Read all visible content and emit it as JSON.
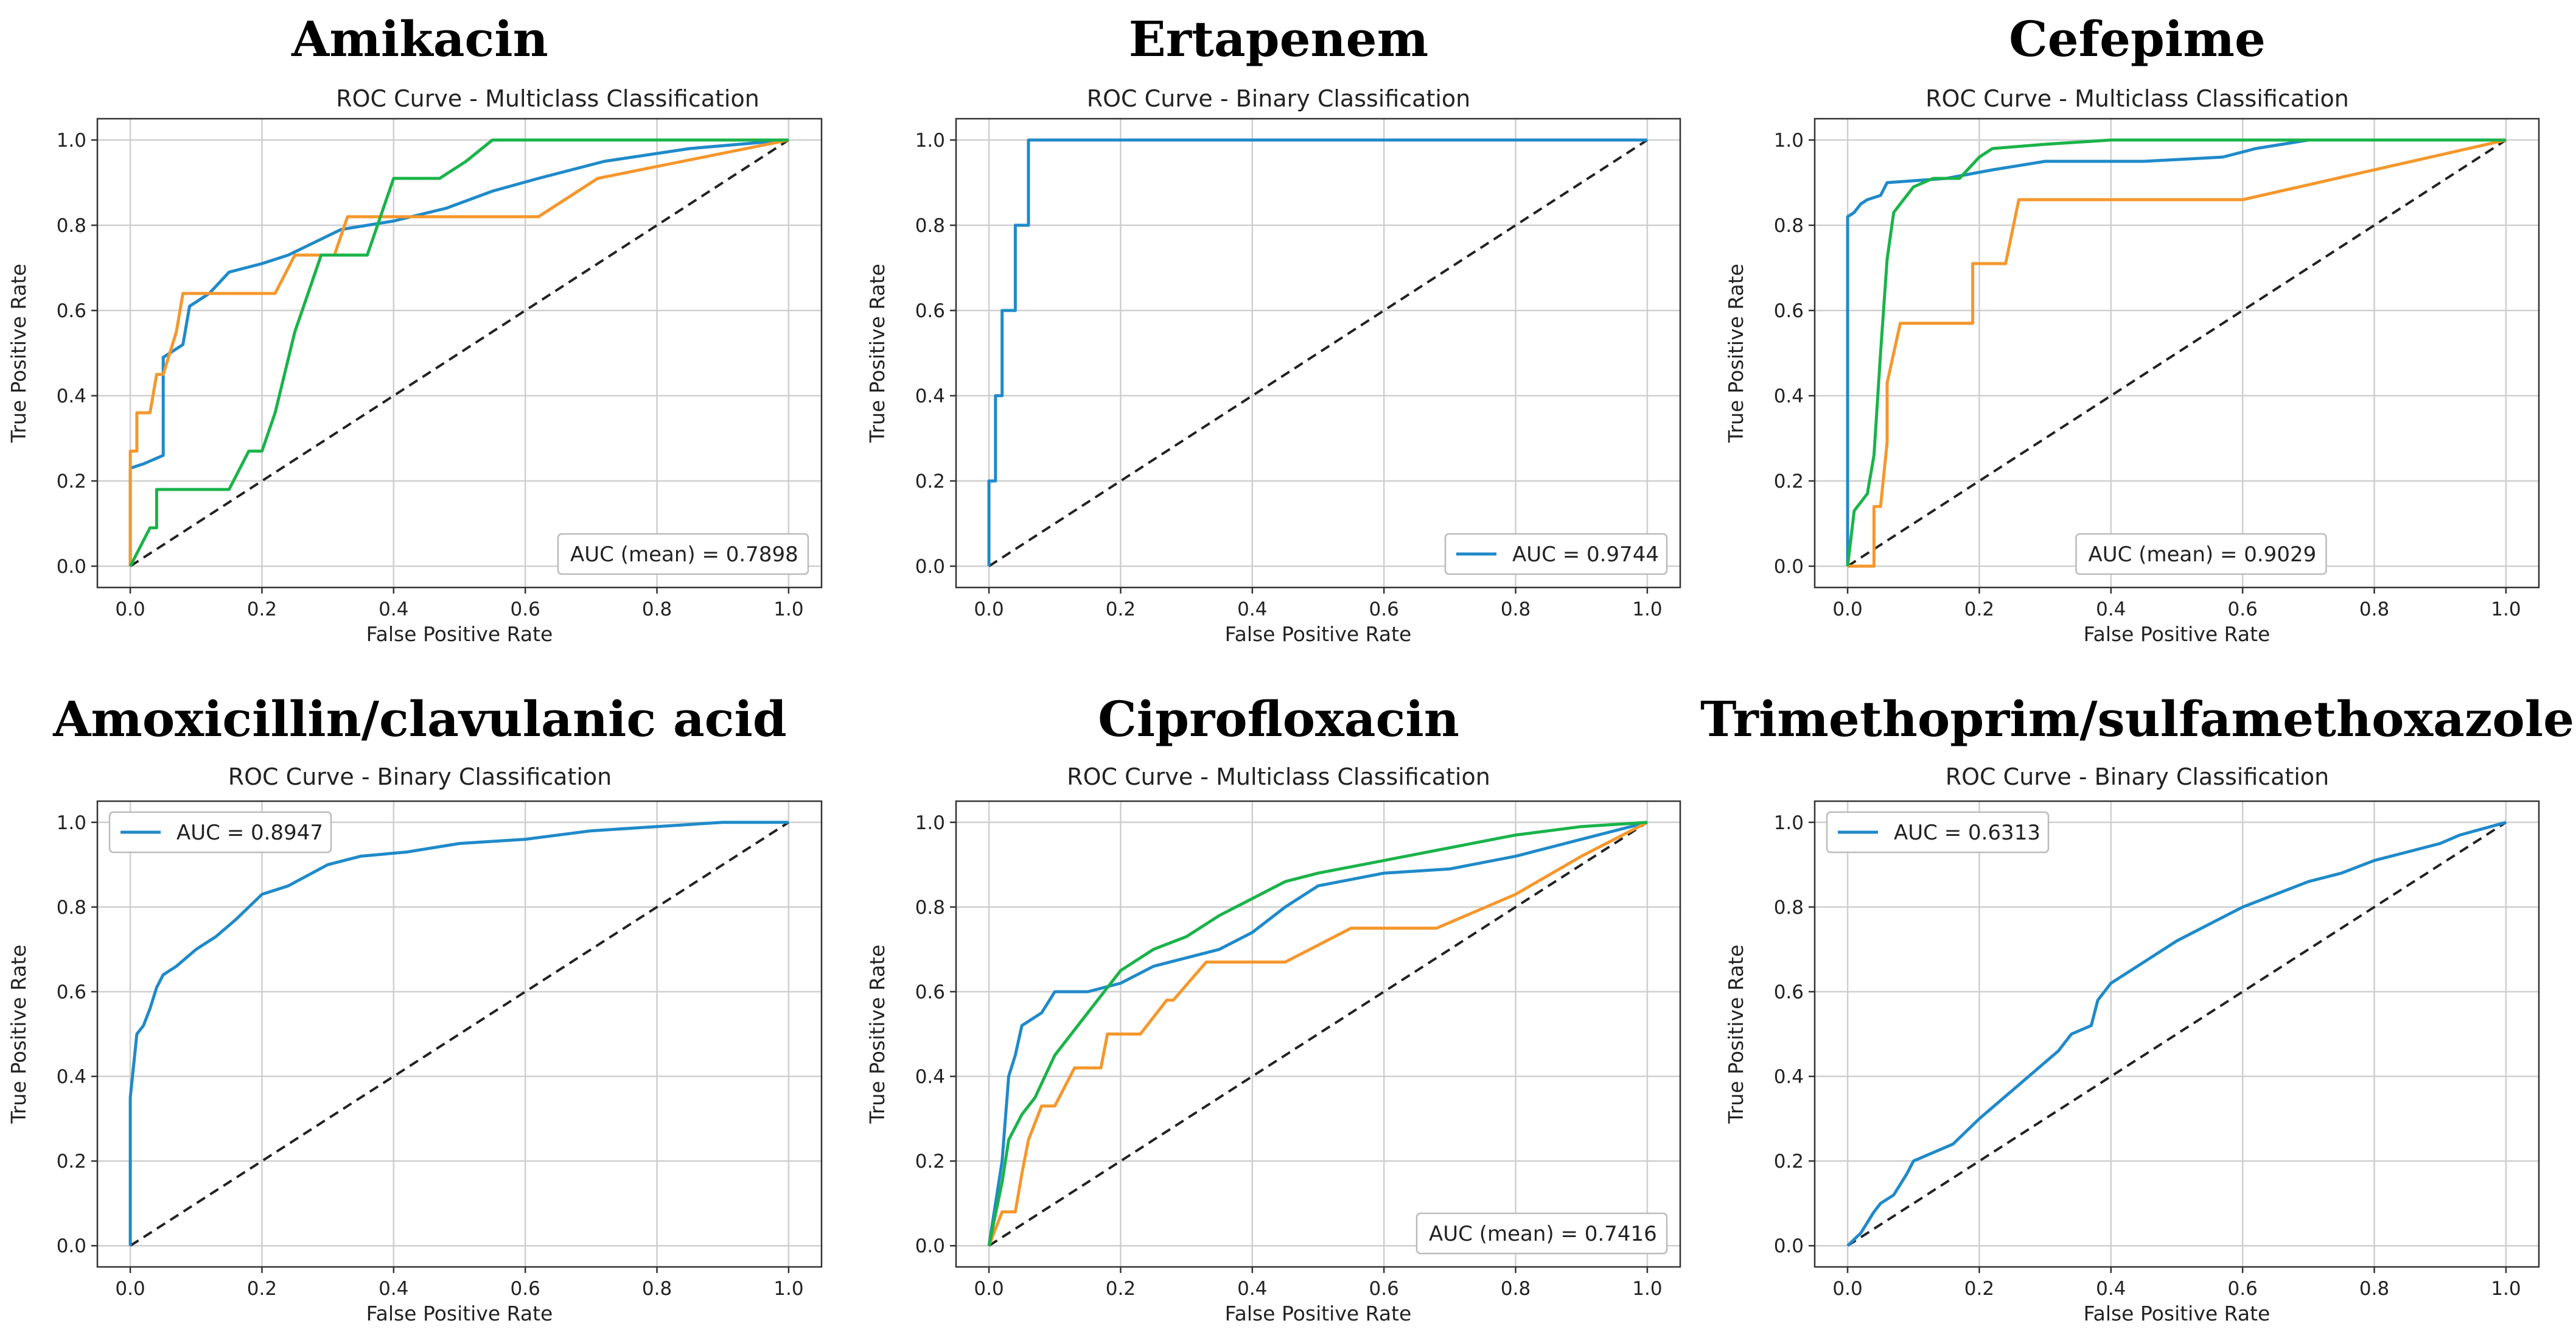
{
  "chart_data": [
    {
      "type": "line",
      "heading": "Amikacin",
      "title": "ROC Curve -  Multiclass Classification",
      "xlabel": "False Positive Rate",
      "ylabel": "True Positive Rate",
      "xlim": [
        0,
        1
      ],
      "ylim": [
        0,
        1
      ],
      "ticks": [
        "0.0",
        "0.2",
        "0.4",
        "0.6",
        "0.8",
        "1.0"
      ],
      "grid": true,
      "legend": {
        "text": "AUC (mean) = 0.7898",
        "placement": "lower-right",
        "has_swatch": false
      },
      "colors": {
        "blue": "#1f8ac9",
        "orange": "#f5972c",
        "green": "#1ab34a",
        "diagonal": "#222222"
      },
      "series": [
        {
          "color": "blue",
          "x": [
            0,
            0,
            0.02,
            0.05,
            0.05,
            0.08,
            0.09,
            0.12,
            0.15,
            0.2,
            0.24,
            0.32,
            0.4,
            0.48,
            0.55,
            0.62,
            0.72,
            0.85,
            1.0
          ],
          "y": [
            0,
            0.23,
            0.24,
            0.26,
            0.49,
            0.52,
            0.61,
            0.64,
            0.69,
            0.71,
            0.73,
            0.79,
            0.81,
            0.84,
            0.88,
            0.91,
            0.95,
            0.98,
            1.0
          ]
        },
        {
          "color": "orange",
          "x": [
            0,
            0,
            0.01,
            0.01,
            0.03,
            0.04,
            0.05,
            0.07,
            0.08,
            0.22,
            0.25,
            0.31,
            0.33,
            0.62,
            0.71,
            1.0
          ],
          "y": [
            0,
            0.27,
            0.27,
            0.36,
            0.36,
            0.45,
            0.45,
            0.55,
            0.64,
            0.64,
            0.73,
            0.73,
            0.82,
            0.82,
            0.91,
            1.0
          ],
          "step": false
        },
        {
          "color": "green",
          "x": [
            0,
            0.03,
            0.04,
            0.04,
            0.05,
            0.15,
            0.18,
            0.2,
            0.22,
            0.25,
            0.27,
            0.29,
            0.3,
            0.36,
            0.4,
            0.47,
            0.51,
            0.55,
            1.0
          ],
          "y": [
            0,
            0.09,
            0.09,
            0.18,
            0.18,
            0.18,
            0.27,
            0.27,
            0.36,
            0.55,
            0.64,
            0.73,
            0.73,
            0.73,
            0.91,
            0.91,
            0.95,
            1.0,
            1.0
          ]
        }
      ]
    },
    {
      "type": "line",
      "heading": "Ertapenem",
      "title": "ROC Curve - Binary Classification",
      "xlabel": "False Positive Rate",
      "ylabel": "True Positive Rate",
      "xlim": [
        0,
        1
      ],
      "ylim": [
        0,
        1
      ],
      "ticks": [
        "0.0",
        "0.2",
        "0.4",
        "0.6",
        "0.8",
        "1.0"
      ],
      "grid": true,
      "legend": {
        "text": "AUC = 0.9744",
        "placement": "lower-right",
        "has_swatch": true
      },
      "colors": {
        "blue": "#1f8ac9",
        "diagonal": "#222222"
      },
      "series": [
        {
          "color": "blue",
          "x": [
            0,
            0,
            0.01,
            0.01,
            0.02,
            0.02,
            0.04,
            0.04,
            0.06,
            0.06,
            1.0
          ],
          "y": [
            0,
            0.2,
            0.2,
            0.4,
            0.4,
            0.6,
            0.6,
            0.8,
            0.8,
            1.0,
            1.0
          ]
        }
      ]
    },
    {
      "type": "line",
      "heading": "Cefepime",
      "title": "ROC Curve - Multiclass Classification",
      "xlabel": "False Positive Rate",
      "ylabel": "True Positive Rate",
      "xlim": [
        0,
        1
      ],
      "ylim": [
        0,
        1
      ],
      "ticks": [
        "0.0",
        "0.2",
        "0.4",
        "0.6",
        "0.8",
        "1.0"
      ],
      "grid": true,
      "legend": {
        "text": "AUC (mean) = 0.9029",
        "placement": "lower-center",
        "has_swatch": false
      },
      "colors": {
        "blue": "#1f8ac9",
        "orange": "#f5972c",
        "green": "#1ab34a",
        "diagonal": "#222222"
      },
      "series": [
        {
          "color": "blue",
          "x": [
            0,
            0,
            0.01,
            0.02,
            0.03,
            0.05,
            0.06,
            0.15,
            0.22,
            0.3,
            0.45,
            0.57,
            0.62,
            0.7,
            1.0
          ],
          "y": [
            0,
            0.82,
            0.83,
            0.85,
            0.86,
            0.87,
            0.9,
            0.91,
            0.93,
            0.95,
            0.95,
            0.96,
            0.98,
            1.0,
            1.0
          ]
        },
        {
          "color": "orange",
          "x": [
            0,
            0.04,
            0.04,
            0.05,
            0.06,
            0.06,
            0.07,
            0.08,
            0.19,
            0.19,
            0.24,
            0.26,
            0.6,
            1.0
          ],
          "y": [
            0,
            0,
            0.14,
            0.14,
            0.29,
            0.43,
            0.5,
            0.57,
            0.57,
            0.71,
            0.71,
            0.86,
            0.86,
            1.0
          ]
        },
        {
          "color": "green",
          "x": [
            0,
            0.01,
            0.03,
            0.04,
            0.05,
            0.06,
            0.07,
            0.08,
            0.1,
            0.13,
            0.17,
            0.2,
            0.22,
            0.3,
            0.4,
            0.7,
            1.0
          ],
          "y": [
            0,
            0.13,
            0.17,
            0.26,
            0.5,
            0.72,
            0.83,
            0.85,
            0.89,
            0.91,
            0.91,
            0.96,
            0.98,
            0.99,
            1.0,
            1.0,
            1.0
          ]
        }
      ]
    },
    {
      "type": "line",
      "heading": "Amoxicillin/clavulanic acid",
      "title": "ROC Curve - Binary Classification",
      "xlabel": "False Positive Rate",
      "ylabel": "True Positive Rate",
      "xlim": [
        0,
        1
      ],
      "ylim": [
        0,
        1
      ],
      "ticks": [
        "0.0",
        "0.2",
        "0.4",
        "0.6",
        "0.8",
        "1.0"
      ],
      "grid": true,
      "legend": {
        "text": "AUC = 0.8947",
        "placement": "upper-left",
        "has_swatch": true
      },
      "colors": {
        "blue": "#1f8ac9",
        "diagonal": "#222222"
      },
      "series": [
        {
          "color": "blue",
          "x": [
            0,
            0,
            0.01,
            0.02,
            0.03,
            0.04,
            0.05,
            0.07,
            0.1,
            0.13,
            0.16,
            0.2,
            0.24,
            0.3,
            0.35,
            0.42,
            0.5,
            0.6,
            0.7,
            0.8,
            0.9,
            1.0
          ],
          "y": [
            0,
            0.35,
            0.5,
            0.52,
            0.56,
            0.61,
            0.64,
            0.66,
            0.7,
            0.73,
            0.77,
            0.83,
            0.85,
            0.9,
            0.92,
            0.93,
            0.95,
            0.96,
            0.98,
            0.99,
            1.0,
            1.0
          ]
        }
      ]
    },
    {
      "type": "line",
      "heading": "Ciprofloxacin",
      "title": "ROC Curve - Multiclass Classification",
      "xlabel": "False Positive Rate",
      "ylabel": "True Positive Rate",
      "xlim": [
        0,
        1
      ],
      "ylim": [
        0,
        1
      ],
      "ticks": [
        "0.0",
        "0.2",
        "0.4",
        "0.6",
        "0.8",
        "1.0"
      ],
      "grid": true,
      "legend": {
        "text": "AUC (mean) = 0.7416",
        "placement": "lower-right",
        "has_swatch": false
      },
      "colors": {
        "blue": "#1f8ac9",
        "orange": "#f5972c",
        "green": "#1ab34a",
        "diagonal": "#222222"
      },
      "series": [
        {
          "color": "blue",
          "x": [
            0,
            0.01,
            0.02,
            0.03,
            0.04,
            0.05,
            0.08,
            0.1,
            0.15,
            0.2,
            0.25,
            0.3,
            0.35,
            0.4,
            0.45,
            0.5,
            0.6,
            0.7,
            0.8,
            0.9,
            1.0
          ],
          "y": [
            0,
            0.1,
            0.2,
            0.4,
            0.45,
            0.52,
            0.55,
            0.6,
            0.6,
            0.62,
            0.66,
            0.68,
            0.7,
            0.74,
            0.8,
            0.85,
            0.88,
            0.89,
            0.92,
            0.96,
            1.0
          ]
        },
        {
          "color": "orange",
          "x": [
            0,
            0.02,
            0.04,
            0.05,
            0.06,
            0.08,
            0.1,
            0.13,
            0.17,
            0.18,
            0.23,
            0.27,
            0.28,
            0.33,
            0.45,
            0.55,
            0.68,
            0.8,
            0.9,
            1.0
          ],
          "y": [
            0,
            0.08,
            0.08,
            0.17,
            0.25,
            0.33,
            0.33,
            0.42,
            0.42,
            0.5,
            0.5,
            0.58,
            0.58,
            0.67,
            0.67,
            0.75,
            0.75,
            0.83,
            0.92,
            1.0
          ]
        },
        {
          "color": "green",
          "x": [
            0,
            0.02,
            0.03,
            0.05,
            0.07,
            0.1,
            0.15,
            0.2,
            0.25,
            0.3,
            0.35,
            0.4,
            0.45,
            0.5,
            0.6,
            0.7,
            0.8,
            0.9,
            1.0
          ],
          "y": [
            0,
            0.15,
            0.25,
            0.31,
            0.35,
            0.45,
            0.55,
            0.65,
            0.7,
            0.73,
            0.78,
            0.82,
            0.86,
            0.88,
            0.91,
            0.94,
            0.97,
            0.99,
            1.0
          ]
        }
      ]
    },
    {
      "type": "line",
      "heading": "Trimethoprim/sulfamethoxazole",
      "title": "ROC Curve - Binary Classification",
      "xlabel": "False Positive Rate",
      "ylabel": "True Positive Rate",
      "xlim": [
        0,
        1
      ],
      "ylim": [
        0,
        1
      ],
      "ticks": [
        "0.0",
        "0.2",
        "0.4",
        "0.6",
        "0.8",
        "1.0"
      ],
      "grid": true,
      "legend": {
        "text": "AUC = 0.6313",
        "placement": "upper-left",
        "has_swatch": true
      },
      "colors": {
        "blue": "#1f8ac9",
        "diagonal": "#222222"
      },
      "series": [
        {
          "color": "blue",
          "x": [
            0,
            0.02,
            0.04,
            0.05,
            0.07,
            0.09,
            0.1,
            0.13,
            0.16,
            0.18,
            0.2,
            0.23,
            0.26,
            0.29,
            0.32,
            0.34,
            0.37,
            0.38,
            0.4,
            0.45,
            0.5,
            0.55,
            0.6,
            0.65,
            0.7,
            0.75,
            0.8,
            0.85,
            0.9,
            0.93,
            1.0
          ],
          "y": [
            0,
            0.03,
            0.08,
            0.1,
            0.12,
            0.17,
            0.2,
            0.22,
            0.24,
            0.27,
            0.3,
            0.34,
            0.38,
            0.42,
            0.46,
            0.5,
            0.52,
            0.58,
            0.62,
            0.67,
            0.72,
            0.76,
            0.8,
            0.83,
            0.86,
            0.88,
            0.91,
            0.93,
            0.95,
            0.97,
            1.0
          ]
        }
      ]
    }
  ]
}
